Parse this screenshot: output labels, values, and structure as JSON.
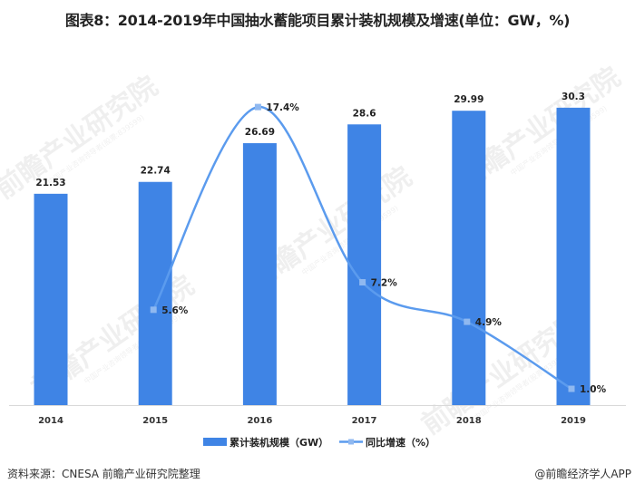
{
  "title": "图表8：2014-2019年中国抽水蓄能项目累计装机规模及增速(单位：GW，%)",
  "footer": {
    "source": "资料来源：CNESA 前瞻产业研究院整理",
    "credit": "@前瞻经济学人APP"
  },
  "watermark": {
    "text": "前瞻产业研究院",
    "subtext": "中国产业咨询领导者(股票:839599)"
  },
  "colors": {
    "bar": "#3f84e5",
    "line": "#5b9bee",
    "marker": "#8fb8f0",
    "axis": "#d9d9d9",
    "label": "#222222"
  },
  "chart_data": {
    "type": "bar+line",
    "title": "图表8：2014-2019年中国抽水蓄能项目累计装机规模及增速(单位：GW，%)",
    "categories": [
      "2014",
      "2015",
      "2016",
      "2017",
      "2018",
      "2019"
    ],
    "series": [
      {
        "name": "累计装机规模（GW）",
        "type": "bar",
        "axis": "left",
        "values": [
          21.53,
          22.74,
          26.69,
          28.6,
          29.99,
          30.3
        ],
        "labels": [
          "21.53",
          "22.74",
          "26.69",
          "28.6",
          "29.99",
          "30.3"
        ]
      },
      {
        "name": "同比增速（%）",
        "type": "line",
        "axis": "right",
        "smooth": true,
        "x_start_index": 1,
        "values": [
          5.6,
          17.4,
          7.2,
          4.9,
          1.0
        ],
        "labels": [
          "5.6%",
          "17.4%",
          "7.2%",
          "4.9%",
          "1.0%"
        ]
      }
    ],
    "xlabel": "",
    "ylabel": "",
    "grid": false,
    "axis_ticks_visible": false,
    "legend_position": "bottom",
    "legend": [
      "累计装机规模（GW）",
      "同比增速（%）"
    ]
  }
}
